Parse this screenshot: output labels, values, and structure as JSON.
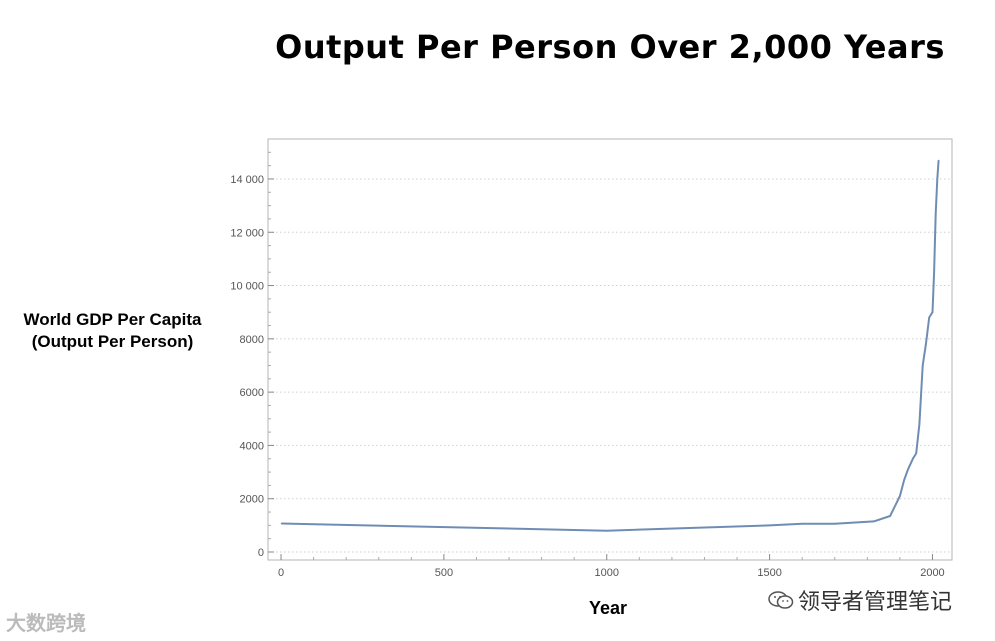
{
  "chart_data": {
    "type": "line",
    "title": "Output Per Person Over 2,000 Years",
    "ylabel_lines": [
      "World GDP Per Capita",
      "(Output Per Person)"
    ],
    "xlabel": "Year",
    "xlim": [
      -40,
      2060
    ],
    "ylim": [
      -300,
      15500
    ],
    "xticks": [
      0,
      500,
      1000,
      1500,
      2000
    ],
    "xtick_labels": [
      "0",
      "500",
      "1000",
      "1500",
      "2000"
    ],
    "yticks": [
      0,
      2000,
      4000,
      6000,
      8000,
      10000,
      12000,
      14000
    ],
    "ytick_labels": [
      "0",
      "2000",
      "4000",
      "6000",
      "8000",
      "10 000",
      "12 000",
      "14 000"
    ],
    "grid": "horizontal dotted",
    "line_color": "#6f8db3",
    "series": [
      {
        "x": [
          1,
          1000,
          1500,
          1600,
          1700,
          1820,
          1870,
          1900,
          1913,
          1925,
          1940,
          1950,
          1960,
          1970,
          1980,
          1990,
          2000,
          2005,
          2010,
          2015,
          2019
        ],
        "y": [
          1070,
          800,
          1000,
          1060,
          1060,
          1150,
          1350,
          2100,
          2700,
          3100,
          3500,
          3700,
          4800,
          7000,
          7800,
          8800,
          9000,
          10500,
          12700,
          14000,
          14700
        ]
      }
    ]
  },
  "watermark_left": "大数跨境",
  "watermark_right": "领导者管理笔记"
}
